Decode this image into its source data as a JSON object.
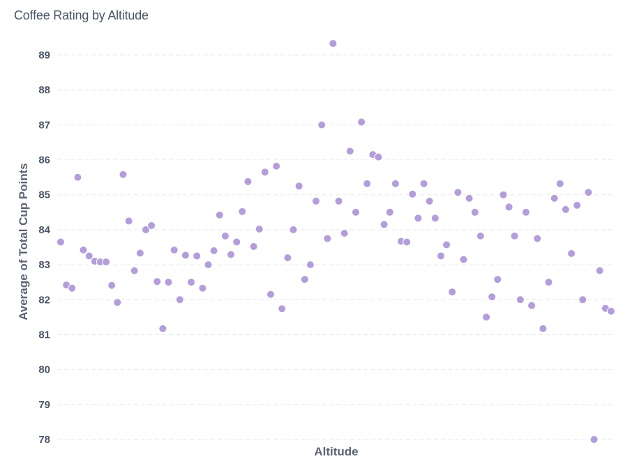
{
  "chart_data": {
    "type": "scatter",
    "title": "Coffee Rating by Altitude",
    "xlabel": "Altitude",
    "ylabel": "Average of Total Cup Points",
    "ylim": [
      78,
      89
    ],
    "yticks": [
      "78",
      "79",
      "80",
      "81",
      "82",
      "83",
      "84",
      "85",
      "86",
      "87",
      "88",
      "89"
    ],
    "xticks_shown": false,
    "grid": "horizontal",
    "point_color": "#b39ddb",
    "values": [
      83.65,
      82.42,
      82.33,
      85.5,
      83.42,
      83.25,
      83.1,
      83.08,
      83.08,
      82.41,
      81.92,
      85.58,
      84.25,
      82.83,
      83.33,
      84.0,
      84.12,
      82.52,
      81.17,
      82.5,
      83.42,
      82.0,
      83.27,
      82.5,
      83.25,
      82.33,
      83.0,
      83.4,
      84.42,
      83.82,
      83.29,
      83.65,
      84.52,
      85.38,
      83.52,
      84.02,
      85.65,
      82.15,
      85.82,
      81.74,
      83.2,
      84.0,
      85.25,
      82.58,
      83.0,
      84.82,
      87.0,
      83.75,
      89.33,
      84.82,
      83.9,
      86.25,
      84.5,
      87.08,
      85.32,
      86.15,
      86.08,
      84.15,
      84.5,
      85.32,
      83.67,
      83.65,
      85.02,
      84.33,
      85.32,
      84.82,
      84.33,
      83.25,
      83.57,
      82.22,
      85.07,
      83.15,
      84.9,
      84.5,
      83.82,
      81.5,
      82.08,
      82.58,
      85.0,
      84.65,
      83.82,
      82.0,
      84.5,
      81.83,
      83.75,
      81.17,
      82.5,
      84.9,
      85.32,
      84.58,
      83.32,
      84.7,
      82.0,
      85.07,
      78.0,
      82.83,
      81.75,
      81.67
    ]
  }
}
